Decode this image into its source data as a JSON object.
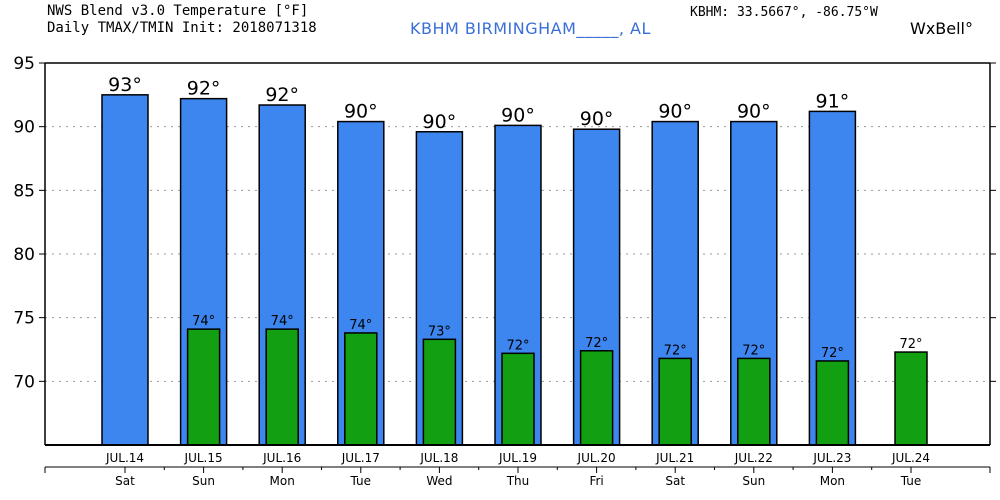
{
  "header": {
    "title_line1": "NWS Blend v3.0 Temperature [°F]",
    "title_line2": "Daily TMAX/TMIN Init: 2018071318",
    "station": "KBHM BIRMINGHAM_____, AL",
    "coords": "KBHM: 33.5667°, -86.75°W",
    "brand": "WxBell°"
  },
  "colors": {
    "tmax": "#3d86f0",
    "tmin": "#12a012",
    "grid": "#999999"
  },
  "chart_data": {
    "type": "bar",
    "categories": [
      "JUL.14",
      "JUL.15",
      "JUL.16",
      "JUL.17",
      "JUL.18",
      "JUL.19",
      "JUL.20",
      "JUL.21",
      "JUL.22",
      "JUL.23",
      "JUL.24"
    ],
    "days": [
      "Sat",
      "Sun",
      "Mon",
      "Tue",
      "Wed",
      "Thu",
      "Fri",
      "Sat",
      "Sun",
      "Mon",
      "Tue"
    ],
    "series": [
      {
        "key": "tmax",
        "values": [
          92.5,
          92.2,
          91.7,
          90.4,
          89.6,
          90.1,
          89.8,
          90.4,
          90.4,
          91.2,
          null
        ],
        "labels": [
          "93°",
          "92°",
          "92°",
          "90°",
          "90°",
          "90°",
          "90°",
          "90°",
          "90°",
          "91°",
          ""
        ]
      },
      {
        "key": "tmin",
        "values": [
          null,
          74.1,
          74.1,
          73.8,
          73.3,
          72.2,
          72.4,
          71.8,
          71.8,
          71.6,
          72.3
        ],
        "labels": [
          "",
          "74°",
          "74°",
          "74°",
          "73°",
          "72°",
          "72°",
          "72°",
          "72°",
          "72°",
          "72°"
        ]
      }
    ],
    "ylim": [
      65,
      95
    ],
    "yticks": [
      70,
      75,
      80,
      85,
      90,
      95
    ],
    "grid": true
  }
}
